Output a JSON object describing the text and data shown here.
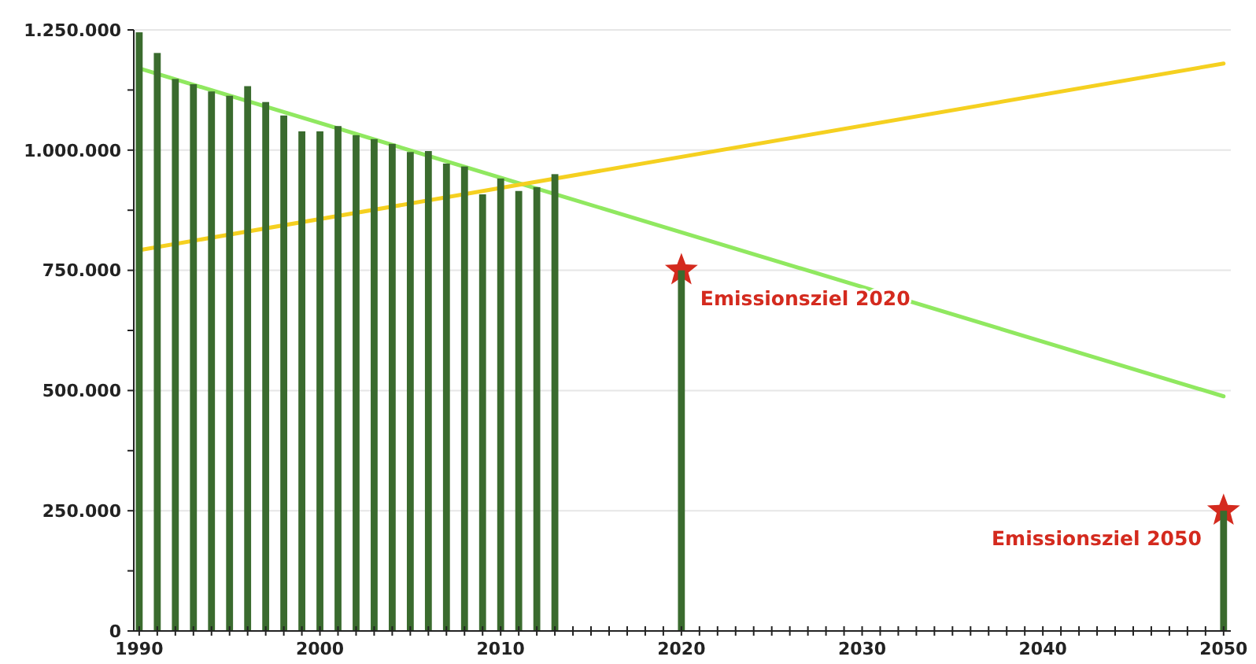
{
  "chart_data": {
    "type": "bar",
    "xlim": [
      1989.7,
      2050.4
    ],
    "ylim": [
      0,
      1250000
    ],
    "xticks": [
      1990,
      {
        "value": 1991,
        "label": null
      },
      {
        "value": 1992,
        "label": null
      },
      {
        "value": 1993,
        "label": null
      },
      {
        "value": 1994,
        "label": null
      },
      {
        "value": 1995,
        "label": null
      },
      {
        "value": 1996,
        "label": null
      },
      {
        "value": 1997,
        "label": null
      },
      {
        "value": 1998,
        "label": null
      },
      {
        "value": 1999,
        "label": null
      },
      2000,
      {
        "value": 2001,
        "label": null
      },
      {
        "value": 2002,
        "label": null
      },
      {
        "value": 2003,
        "label": null
      },
      {
        "value": 2004,
        "label": null
      },
      {
        "value": 2005,
        "label": null
      },
      {
        "value": 2006,
        "label": null
      },
      {
        "value": 2007,
        "label": null
      },
      {
        "value": 2008,
        "label": null
      },
      {
        "value": 2009,
        "label": null
      },
      2010,
      {
        "value": 2011,
        "label": null
      },
      {
        "value": 2012,
        "label": null
      },
      {
        "value": 2013,
        "label": null
      },
      {
        "value": 2014,
        "label": null
      },
      {
        "value": 2015,
        "label": null
      },
      {
        "value": 2016,
        "label": null
      },
      {
        "value": 2017,
        "label": null
      },
      {
        "value": 2018,
        "label": null
      },
      {
        "value": 2019,
        "label": null
      },
      2020,
      {
        "value": 2021,
        "label": null
      },
      {
        "value": 2022,
        "label": null
      },
      {
        "value": 2023,
        "label": null
      },
      {
        "value": 2024,
        "label": null
      },
      {
        "value": 2025,
        "label": null
      },
      {
        "value": 2026,
        "label": null
      },
      {
        "value": 2027,
        "label": null
      },
      {
        "value": 2028,
        "label": null
      },
      {
        "value": 2029,
        "label": null
      },
      2030,
      {
        "value": 2031,
        "label": null
      },
      {
        "value": 2032,
        "label": null
      },
      {
        "value": 2033,
        "label": null
      },
      {
        "value": 2034,
        "label": null
      },
      {
        "value": 2035,
        "label": null
      },
      {
        "value": 2036,
        "label": null
      },
      {
        "value": 2037,
        "label": null
      },
      {
        "value": 2038,
        "label": null
      },
      {
        "value": 2039,
        "label": null
      },
      2040,
      {
        "value": 2041,
        "label": null
      },
      {
        "value": 2042,
        "label": null
      },
      {
        "value": 2043,
        "label": null
      },
      {
        "value": 2044,
        "label": null
      },
      {
        "value": 2045,
        "label": null
      },
      {
        "value": 2046,
        "label": null
      },
      {
        "value": 2047,
        "label": null
      },
      {
        "value": 2048,
        "label": null
      },
      {
        "value": 2049,
        "label": null
      },
      2050
    ],
    "yticks": [
      {
        "value": 0,
        "label": "0"
      },
      {
        "value": 125000,
        "label": null
      },
      {
        "value": 250000,
        "label": "250.000"
      },
      {
        "value": 375000,
        "label": null
      },
      {
        "value": 500000,
        "label": "500.000"
      },
      {
        "value": 625000,
        "label": null
      },
      {
        "value": 750000,
        "label": "750.000"
      },
      {
        "value": 875000,
        "label": null
      },
      {
        "value": 1000000,
        "label": "1.000.000"
      },
      {
        "value": 1125000,
        "label": null
      },
      {
        "value": 1250000,
        "label": "1.250.000"
      }
    ],
    "grid": "y",
    "series": [
      {
        "color": "#3a6b2e",
        "x": [
          1990,
          1991,
          1992,
          1993,
          1994,
          1995,
          1996,
          1997,
          1998,
          1999,
          2000,
          2001,
          2002,
          2003,
          2004,
          2005,
          2006,
          2007,
          2008,
          2009,
          2010,
          2011,
          2012,
          2013,
          2020,
          2050
        ],
        "values": [
          1245000,
          1202000,
          1148000,
          1137000,
          1122000,
          1113000,
          1133000,
          1100000,
          1072000,
          1039000,
          1039000,
          1050000,
          1031000,
          1023000,
          1013000,
          996000,
          998000,
          972000,
          966000,
          908000,
          941000,
          915000,
          923000,
          950000,
          750000,
          250000
        ]
      },
      {
        "type": "line",
        "color": "#90e860",
        "x": [
          1990,
          2050
        ],
        "values": [
          1170000,
          488000
        ]
      },
      {
        "type": "line",
        "color": "#f5d020",
        "x": [
          1990,
          2050
        ],
        "values": [
          792000,
          1180000
        ]
      },
      {
        "type": "scatter",
        "marker": "star",
        "color": "#d42a1e",
        "x": [
          2020,
          2050
        ],
        "values": [
          750000,
          250000
        ]
      }
    ],
    "annotations": [
      {
        "text": "Emissionsziel 2020",
        "x": 2020,
        "y": 750000
      },
      {
        "text": "Emissionsziel 2050",
        "x": 2050,
        "y": 250000
      }
    ]
  }
}
